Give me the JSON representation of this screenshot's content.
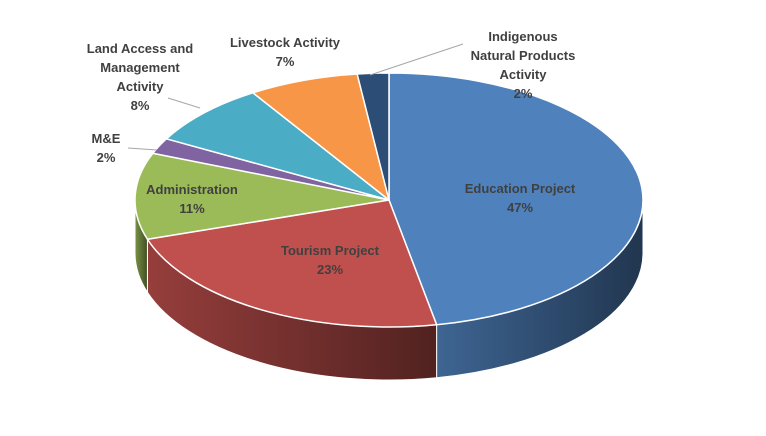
{
  "chart_data": {
    "type": "pie",
    "style": "3d",
    "title": "",
    "legend": "none",
    "slices": [
      {
        "label": "Education Project",
        "value": 47,
        "display": "47%",
        "color": "#4F81BD"
      },
      {
        "label": "Tourism Project",
        "value": 23,
        "display": "23%",
        "color": "#C0504D"
      },
      {
        "label": "Administration",
        "value": 11,
        "display": "11%",
        "color": "#9BBB59"
      },
      {
        "label": "M&E",
        "value": 2,
        "display": "2%",
        "color": "#8064A2"
      },
      {
        "label": "Land Access and Management Activity",
        "value": 8,
        "display": "8%",
        "color": "#4BACC6"
      },
      {
        "label": "Livestock Activity",
        "value": 7,
        "display": "7%",
        "color": "#F79646"
      },
      {
        "label": "Indigenous Natural Products Activity",
        "value": 2,
        "display": "2%",
        "color": "#2C4D75"
      }
    ]
  }
}
